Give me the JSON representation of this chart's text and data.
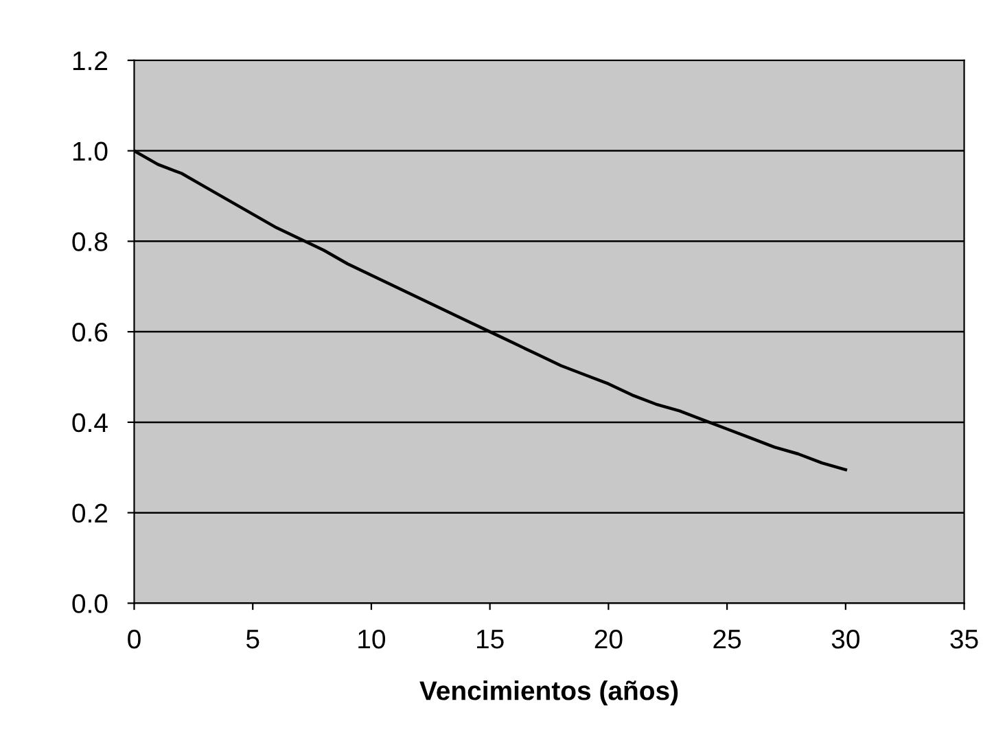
{
  "chart_data": {
    "type": "line",
    "xlabel": "Vencimientos (años)",
    "x": [
      0,
      1,
      2,
      3,
      4,
      5,
      6,
      7,
      8,
      9,
      10,
      11,
      12,
      13,
      14,
      15,
      16,
      17,
      18,
      19,
      20,
      21,
      22,
      23,
      24,
      25,
      26,
      27,
      28,
      29,
      30
    ],
    "series": [
      {
        "color": "#000000",
        "values": [
          1.0,
          0.97,
          0.95,
          0.92,
          0.89,
          0.86,
          0.83,
          0.805,
          0.78,
          0.75,
          0.725,
          0.7,
          0.675,
          0.65,
          0.625,
          0.6,
          0.575,
          0.55,
          0.525,
          0.505,
          0.485,
          0.46,
          0.44,
          0.425,
          0.405,
          0.385,
          0.365,
          0.345,
          0.33,
          0.31,
          0.295
        ]
      }
    ],
    "xlim": [
      0,
      35
    ],
    "xticks": [
      0,
      5,
      10,
      15,
      20,
      25,
      30,
      35
    ],
    "ylim": [
      0,
      1.2
    ],
    "yticks": [
      {
        "value": 0,
        "label": "0.0"
      },
      {
        "value": 0.2,
        "label": "0.2"
      },
      {
        "value": 0.4,
        "label": "0.4"
      },
      {
        "value": 0.6,
        "label": "0.6"
      },
      {
        "value": 0.8,
        "label": "0.8"
      },
      {
        "value": 1.0,
        "label": "1.0"
      },
      {
        "value": 1.2,
        "label": "1.2"
      }
    ],
    "grid": "y",
    "marker": "none",
    "line_style": "solid",
    "legend": false
  }
}
